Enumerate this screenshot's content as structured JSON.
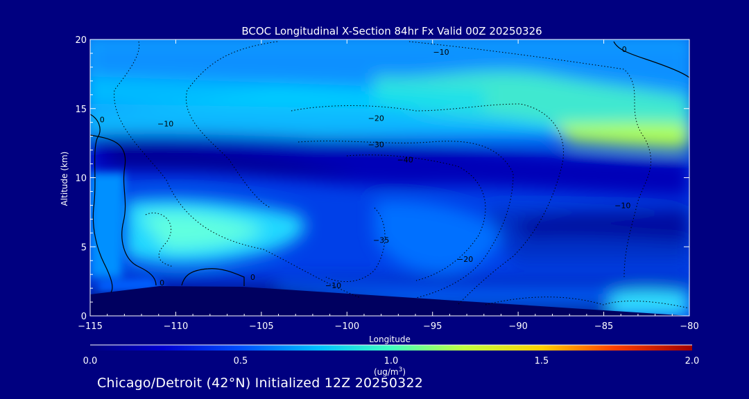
{
  "chart_data": {
    "type": "heatmap",
    "title": "BCOC Longitudinal X-Section 84hr  Fx Valid 00Z 20250326",
    "xlabel": "Longitude",
    "ylabel": "Altitude (km)",
    "xlim": [
      -115,
      -80
    ],
    "ylim": [
      0,
      20
    ],
    "x_ticks": [
      -115,
      -110,
      -105,
      -100,
      -95,
      -90,
      -85,
      -80
    ],
    "y_ticks": [
      0,
      5,
      10,
      15,
      20
    ],
    "colorbar": {
      "label_line1": "(ug/m",
      "label_sup": "3",
      "label_line2": ")",
      "range": [
        0.0,
        2.0
      ],
      "ticks": [
        "0.0",
        "0.5",
        "1.0",
        "1.5",
        "2.0"
      ],
      "tick_values": [
        0.0,
        0.5,
        1.0,
        1.5,
        2.0
      ],
      "colormap": [
        "#000080",
        "#0000d0",
        "#0050ff",
        "#00c0ff",
        "#40ffc0",
        "#c0ff40",
        "#ffd000",
        "#ff4000",
        "#a00000"
      ]
    },
    "grid": false,
    "contours": [
      {
        "label": "-10",
        "lon": -94.5,
        "alt": 19.1,
        "style": "dotted"
      },
      {
        "label": "-10",
        "lon": -110.6,
        "alt": 13.9,
        "style": "dotted"
      },
      {
        "label": "-20",
        "lon": -98.3,
        "alt": 14.3,
        "style": "dotted"
      },
      {
        "label": "-30",
        "lon": -98.3,
        "alt": 12.4,
        "style": "dotted"
      },
      {
        "label": "-40",
        "lon": -96.6,
        "alt": 11.3,
        "style": "dotted"
      },
      {
        "label": "-35",
        "lon": -98.0,
        "alt": 5.5,
        "style": "dotted"
      },
      {
        "label": "-20",
        "lon": -93.1,
        "alt": 4.1,
        "style": "dotted"
      },
      {
        "label": "-10",
        "lon": -100.8,
        "alt": 2.2,
        "style": "dotted"
      },
      {
        "label": "-10",
        "lon": -83.9,
        "alt": 8.0,
        "style": "dotted"
      },
      {
        "label": "0",
        "lon": -114.3,
        "alt": 14.2,
        "style": "solid"
      },
      {
        "label": "0",
        "lon": -83.8,
        "alt": 19.3,
        "style": "solid"
      },
      {
        "label": "0",
        "lon": -110.8,
        "alt": 2.4,
        "style": "solid"
      },
      {
        "label": "0",
        "lon": -105.5,
        "alt": 2.8,
        "style": "solid"
      }
    ]
  },
  "footer": "Chicago/Detroit (42°N) Initialized 12Z 20250322"
}
